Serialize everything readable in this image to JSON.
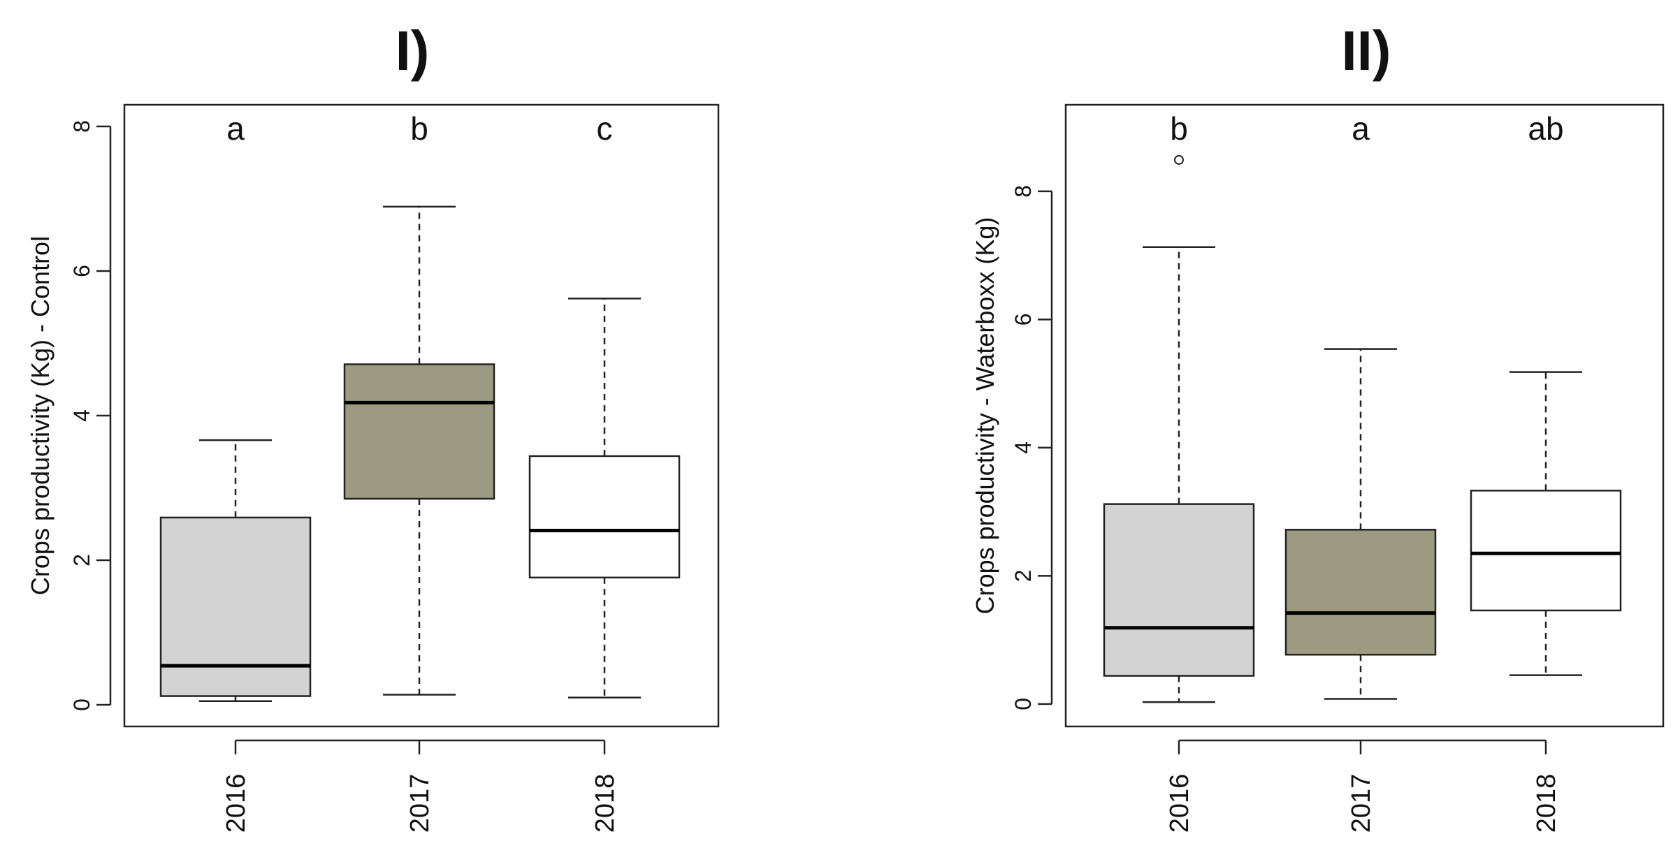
{
  "colors": {
    "c2016": "#d3d3d3",
    "c2017": "#9c9a80",
    "c2018": "#ffffff",
    "stroke": "#222222"
  },
  "chart_data": [
    {
      "type": "box",
      "title": "I)",
      "ylabel": "Crops productivity (Kg) - Control",
      "xlabel": "",
      "categories": [
        "2016",
        "2017",
        "2018"
      ],
      "yticks": [
        0,
        2,
        4,
        6,
        8
      ],
      "ylim": [
        -0.3,
        8.3
      ],
      "boxes": [
        {
          "category": "2016",
          "min": 0.05,
          "q1": 0.12,
          "median": 0.54,
          "q3": 2.59,
          "max": 3.66,
          "outliers": [],
          "letter": "a",
          "color": "#d3d3d3"
        },
        {
          "category": "2017",
          "min": 0.14,
          "q1": 2.85,
          "median": 4.18,
          "q3": 4.71,
          "max": 6.89,
          "outliers": [],
          "letter": "b",
          "color": "#9c9a80"
        },
        {
          "category": "2018",
          "min": 0.1,
          "q1": 1.76,
          "median": 2.41,
          "q3": 3.44,
          "max": 5.62,
          "outliers": [],
          "letter": "c",
          "color": "#ffffff"
        }
      ]
    },
    {
      "type": "box",
      "title": "II)",
      "ylabel": "Crops productivity - Waterboxx (Kg)",
      "xlabel": "",
      "categories": [
        "2016",
        "2017",
        "2018"
      ],
      "yticks": [
        0,
        2,
        4,
        6,
        8
      ],
      "ylim": [
        -0.35,
        9.35
      ],
      "boxes": [
        {
          "category": "2016",
          "min": 0.03,
          "q1": 0.44,
          "median": 1.19,
          "q3": 3.12,
          "max": 7.13,
          "outliers": [
            8.49
          ],
          "letter": "b",
          "color": "#d3d3d3"
        },
        {
          "category": "2017",
          "min": 0.08,
          "q1": 0.77,
          "median": 1.42,
          "q3": 2.72,
          "max": 5.54,
          "outliers": [],
          "letter": "a",
          "color": "#9c9a80"
        },
        {
          "category": "2018",
          "min": 0.45,
          "q1": 1.46,
          "median": 2.35,
          "q3": 3.33,
          "max": 5.18,
          "outliers": [],
          "letter": "ab",
          "color": "#ffffff"
        }
      ]
    }
  ]
}
